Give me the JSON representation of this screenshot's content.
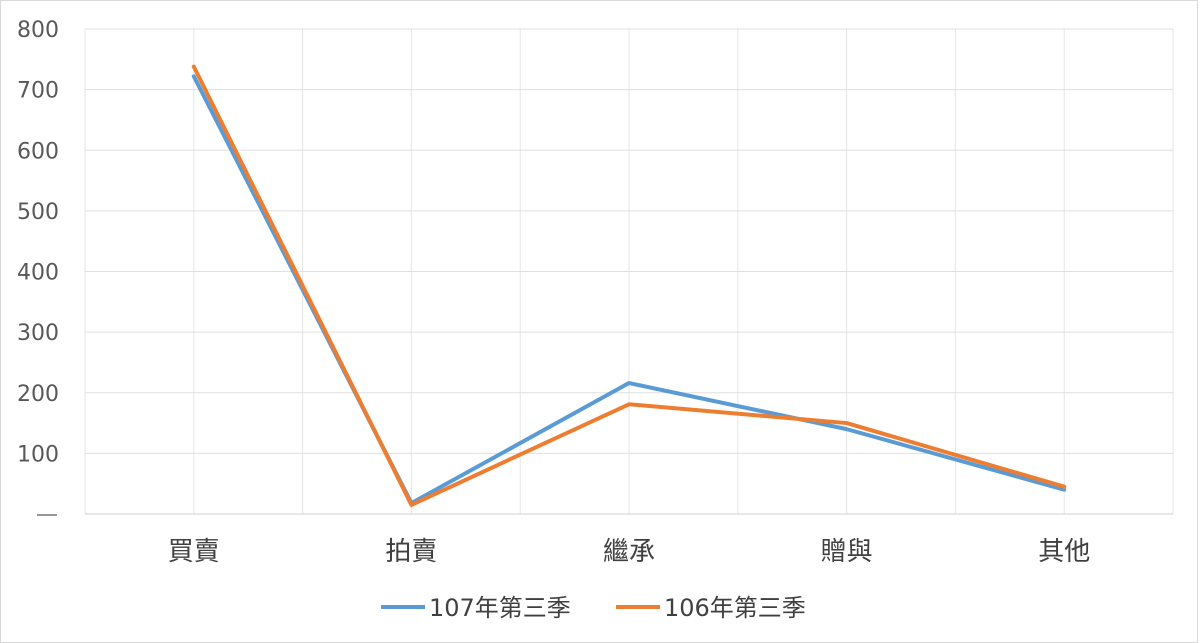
{
  "chart_data": {
    "type": "line",
    "title": "",
    "xlabel": "",
    "ylabel": "",
    "categories": [
      "買賣",
      "拍賣",
      "繼承",
      "贈與",
      "其他"
    ],
    "y_ticks": [
      "",
      "100",
      "200",
      "300",
      "400",
      "500",
      "600",
      "700",
      "800"
    ],
    "ylim": [
      0,
      800
    ],
    "grid": true,
    "legend_position": "bottom",
    "series": [
      {
        "name": "107年第三季",
        "color": "#5b9bd5",
        "values": [
          722,
          18,
          216,
          140,
          40
        ]
      },
      {
        "name": "106年第三季",
        "color": "#ed7d31",
        "values": [
          738,
          15,
          181,
          150,
          45
        ]
      }
    ]
  }
}
